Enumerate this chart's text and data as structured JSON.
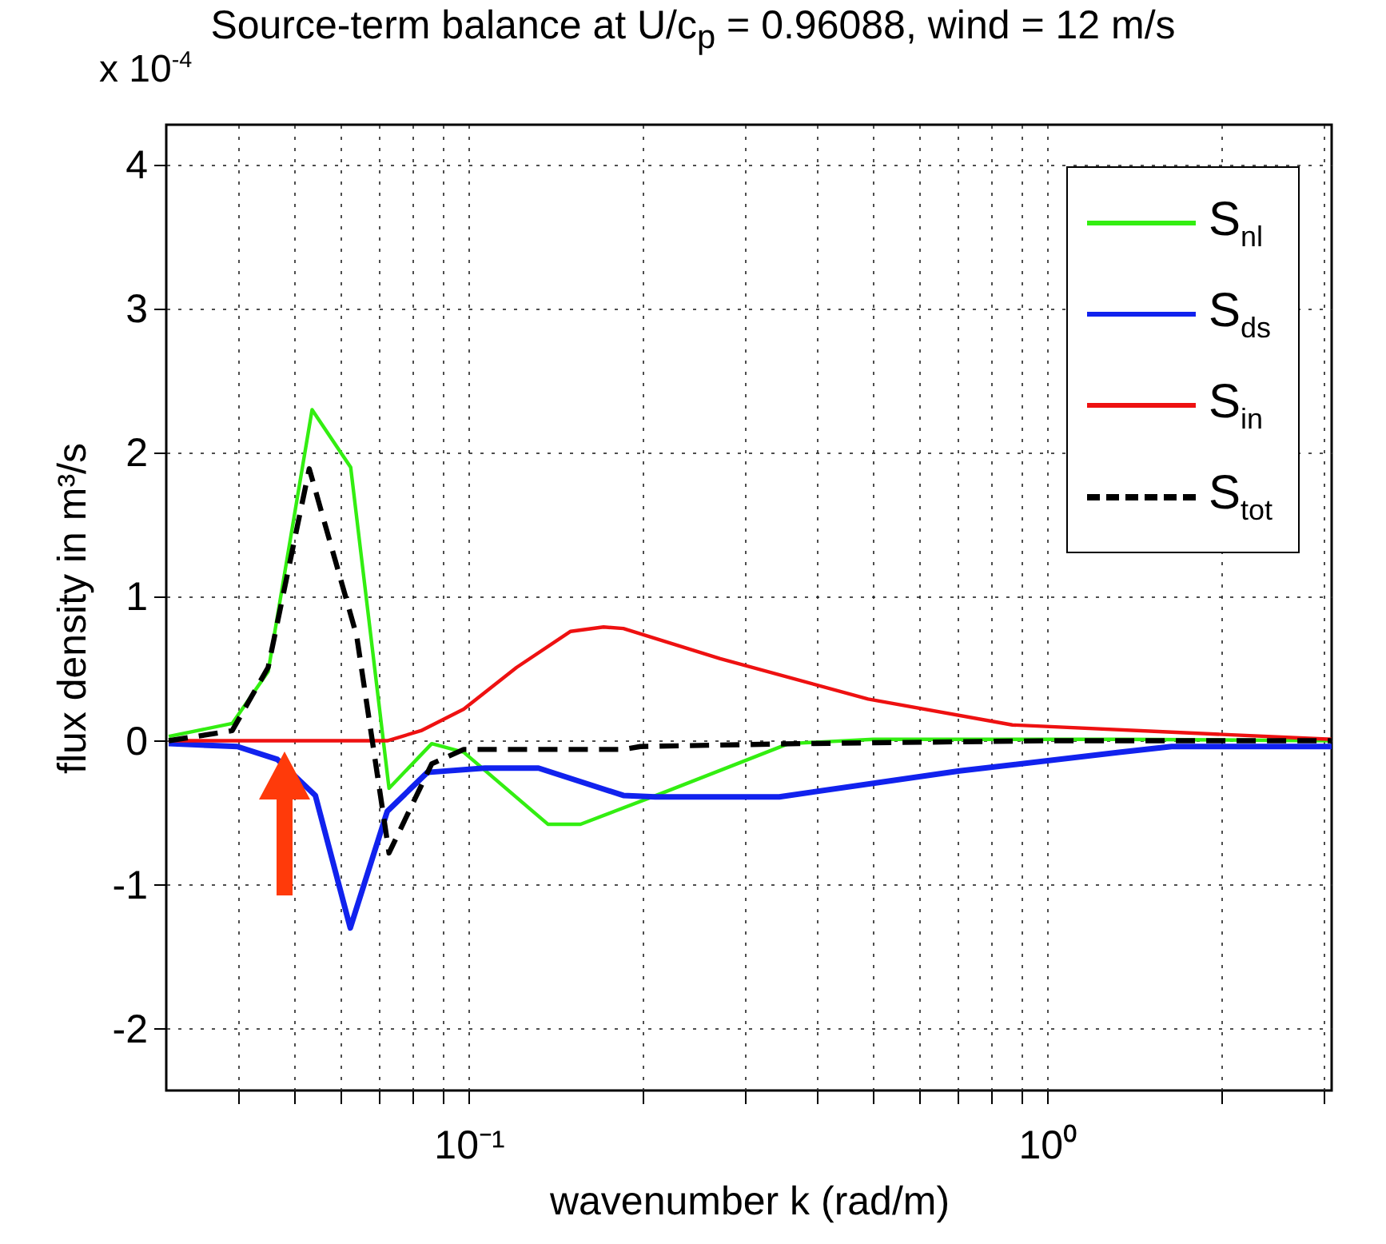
{
  "chart_data": {
    "type": "line",
    "title": "Source-term balance at U/c$_{p}$ = 0.96088,  wind = 12 m/s",
    "xlabel": "wavenumber k (rad/m)",
    "ylabel": "flux density in m³/s",
    "annotations": [
      "x 10$^{-4}$"
    ],
    "log": "x",
    "xlim": [
      0.03,
      3.1
    ],
    "ylim": [
      -2.43,
      4.28
    ],
    "xticks": [
      {
        "value": 0.04,
        "label": null
      },
      {
        "value": 0.05,
        "label": null
      },
      {
        "value": 0.06,
        "label": null
      },
      {
        "value": 0.07,
        "label": null
      },
      {
        "value": 0.08,
        "label": null
      },
      {
        "value": 0.09,
        "label": null
      },
      {
        "value": 0.1,
        "label": "10⁻¹"
      },
      {
        "value": 0.2,
        "label": null
      },
      {
        "value": 0.3,
        "label": null
      },
      {
        "value": 0.4,
        "label": null
      },
      {
        "value": 0.5,
        "label": null
      },
      {
        "value": 0.6,
        "label": null
      },
      {
        "value": 0.7,
        "label": null
      },
      {
        "value": 0.8,
        "label": null
      },
      {
        "value": 0.9,
        "label": null
      },
      {
        "value": 1,
        "label": "10⁰"
      },
      {
        "value": 2,
        "label": null
      },
      {
        "value": 3,
        "label": null
      }
    ],
    "yticks": [
      -2,
      -1,
      0,
      1,
      2,
      3,
      4
    ],
    "grid": true,
    "legend": "top right",
    "series": [
      {
        "name": "S$_{nl}$",
        "color": "#33ee11",
        "line_style": "solid",
        "x": [
          0.0303,
          0.039,
          0.045,
          0.0536,
          0.0625,
          0.0728,
          0.0863,
          0.098,
          0.137,
          0.156,
          0.217,
          0.357,
          0.5,
          1.35,
          3.1
        ],
        "values": [
          0.03,
          0.12,
          0.48,
          2.3,
          1.9,
          -0.33,
          -0.02,
          -0.08,
          -0.58,
          -0.58,
          -0.36,
          -0.02,
          0.01,
          0.01,
          0
        ]
      },
      {
        "name": "S$_{ds}$",
        "color": "#1122ee",
        "line_style": "solid",
        "x": [
          0.0303,
          0.0398,
          0.0467,
          0.0543,
          0.0624,
          0.0723,
          0.0848,
          0.1066,
          0.132,
          0.185,
          0.21,
          0.344,
          0.705,
          1.33,
          1.64,
          3.1
        ],
        "values": [
          -0.02,
          -0.04,
          -0.13,
          -0.38,
          -1.3,
          -0.49,
          -0.22,
          -0.19,
          -0.19,
          -0.38,
          -0.39,
          -0.39,
          -0.21,
          -0.08,
          -0.04,
          -0.04
        ]
      },
      {
        "name": "S$_{in}$",
        "color": "#ee1111",
        "line_style": "solid",
        "x": [
          0.0303,
          0.0723,
          0.0827,
          0.098,
          0.121,
          0.15,
          0.171,
          0.185,
          0.272,
          0.49,
          0.87,
          1.64,
          3.1
        ],
        "values": [
          0,
          0,
          0.07,
          0.22,
          0.51,
          0.76,
          0.79,
          0.78,
          0.57,
          0.29,
          0.11,
          0.06,
          0.01
        ]
      },
      {
        "name": "S$_{tot}$",
        "color": "#000000",
        "line_style": "dashed",
        "x": [
          0.0303,
          0.039,
          0.045,
          0.053,
          0.064,
          0.0728,
          0.0863,
          0.098,
          0.185,
          0.198,
          0.373,
          1,
          3.1
        ],
        "values": [
          0,
          0.07,
          0.51,
          1.89,
          0.73,
          -0.78,
          -0.16,
          -0.06,
          -0.06,
          -0.04,
          -0.02,
          0,
          0
        ]
      }
    ]
  }
}
